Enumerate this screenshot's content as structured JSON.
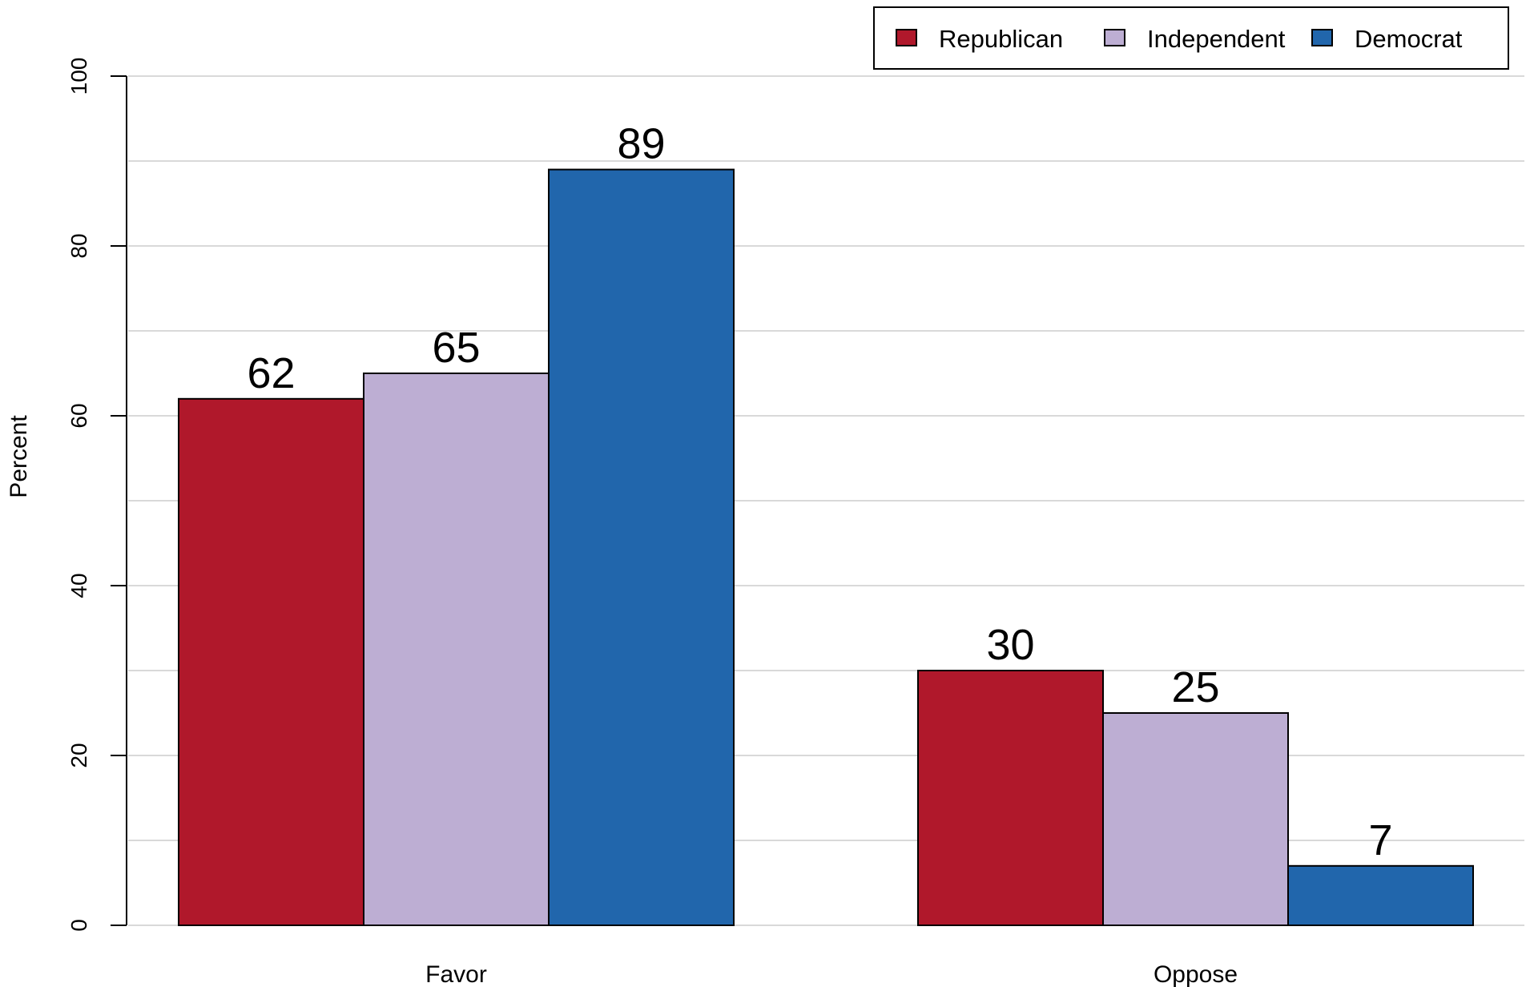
{
  "chart_data": {
    "type": "bar",
    "categories": [
      "Favor",
      "Oppose"
    ],
    "series": [
      {
        "name": "Republican",
        "values": [
          62,
          30
        ],
        "color": "#b0182b"
      },
      {
        "name": "Independent",
        "values": [
          65,
          25
        ],
        "color": "#bdaed3"
      },
      {
        "name": "Democrat",
        "values": [
          89,
          7
        ],
        "color": "#2166ac"
      }
    ],
    "title": "",
    "xlabel": "",
    "ylabel": "Percent",
    "ylim": [
      0,
      100
    ],
    "yticks": [
      0,
      20,
      40,
      60,
      80,
      100
    ],
    "grid": true,
    "legend_position": "top-right",
    "data_labels": true
  },
  "colors": {
    "gridline": "#d9d9d9",
    "bar_border": "#000000",
    "axis": "#000000",
    "background": "#ffffff"
  }
}
